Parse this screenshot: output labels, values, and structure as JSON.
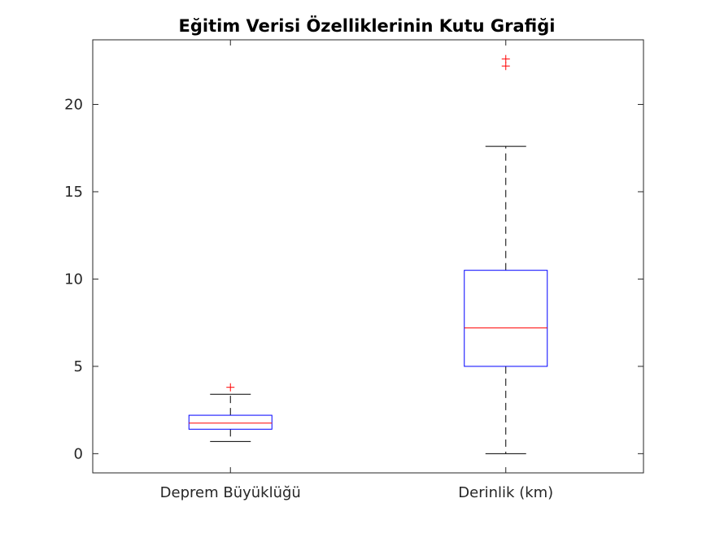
{
  "chart_data": {
    "type": "box",
    "title": "Eğitim Verisi Özelliklerinin Kutu Grafiği",
    "xlabel": "",
    "ylabel": "",
    "categories": [
      "Deprem Büyüklüğü",
      "Derinlik (km)"
    ],
    "ylim": [
      -1.1,
      23.7
    ],
    "yticks": [
      0,
      5,
      10,
      15,
      20
    ],
    "ytick_labels": [
      "0",
      "5",
      "10",
      "15",
      "20"
    ],
    "grid": false,
    "boxes": [
      {
        "category": "Deprem Büyüklüğü",
        "whisker_low": 0.7,
        "q1": 1.4,
        "median": 1.75,
        "q3": 2.2,
        "whisker_high": 3.4,
        "outliers": [
          3.8
        ]
      },
      {
        "category": "Derinlik (km)",
        "whisker_low": 0.0,
        "q1": 5.0,
        "median": 7.2,
        "q3": 10.5,
        "whisker_high": 17.6,
        "outliers": [
          22.2,
          22.6
        ]
      }
    ],
    "colors": {
      "box": "#0000ff",
      "median": "#ff0000",
      "whisker": "#000000",
      "outlier": "#ff0000",
      "axes": "#262626"
    }
  }
}
